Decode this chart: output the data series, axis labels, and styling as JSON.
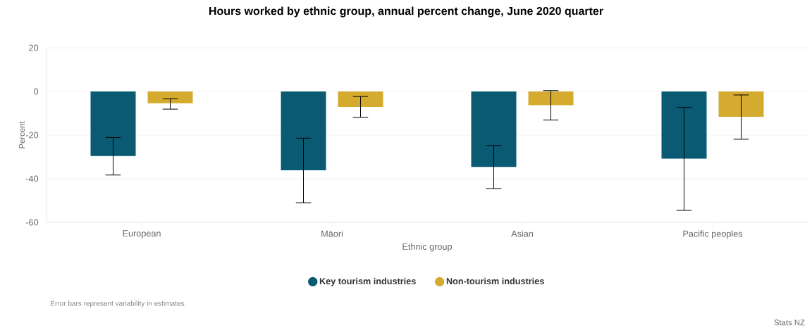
{
  "chart_data": {
    "type": "bar",
    "title": "Hours worked by ethnic group, annual percent change, June 2020 quarter",
    "xlabel": "Ethnic group",
    "ylabel": "Percent",
    "categories": [
      "European",
      "Māori",
      "Asian",
      "Pacific peoples"
    ],
    "series": [
      {
        "name": "Key tourism industries",
        "color": "#0b5a73",
        "values": [
          -29.6,
          -36.1,
          -34.6,
          -30.8
        ],
        "errors": [
          [
            -38.3,
            -21.1
          ],
          [
            -51.0,
            -21.4
          ],
          [
            -44.5,
            -24.8
          ],
          [
            -54.5,
            -7.3
          ]
        ]
      },
      {
        "name": "Non-tourism industries",
        "color": "#d4ab2e",
        "values": [
          -5.4,
          -7.1,
          -6.3,
          -11.6
        ],
        "errors": [
          [
            -8.1,
            -3.4
          ],
          [
            -11.8,
            -2.3
          ],
          [
            -13.1,
            0.4
          ],
          [
            -21.9,
            -1.6
          ]
        ]
      }
    ],
    "ylim": [
      -60,
      20
    ],
    "yticks": [
      -60,
      -40,
      -20,
      0,
      20
    ],
    "grid": "y",
    "legend": "bottom",
    "annotations": [
      "Error bars represent variability in estimates.",
      "Stats NZ"
    ]
  }
}
